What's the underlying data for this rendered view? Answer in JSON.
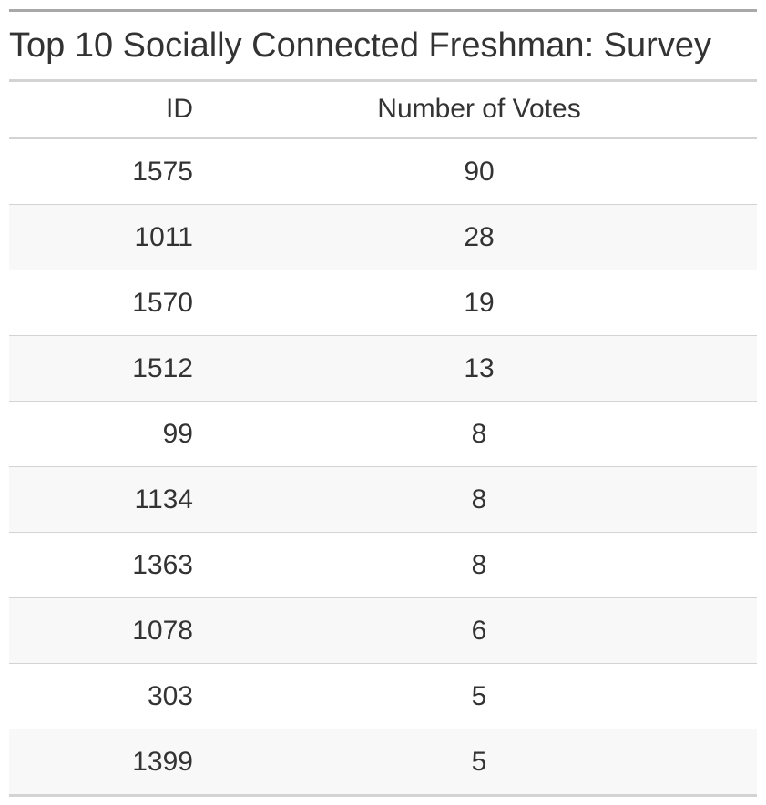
{
  "chart_data": {
    "type": "table",
    "title": "Top 10 Socially Connected Freshman: Survey",
    "columns": [
      "ID",
      "Number of Votes"
    ],
    "rows": [
      {
        "id": "1575",
        "votes": "90"
      },
      {
        "id": "1011",
        "votes": "28"
      },
      {
        "id": "1570",
        "votes": "19"
      },
      {
        "id": "1512",
        "votes": "13"
      },
      {
        "id": "99",
        "votes": "8"
      },
      {
        "id": "1134",
        "votes": "8"
      },
      {
        "id": "1363",
        "votes": "8"
      },
      {
        "id": "1078",
        "votes": "6"
      },
      {
        "id": "303",
        "votes": "5"
      },
      {
        "id": "1399",
        "votes": "5"
      }
    ],
    "striped": true,
    "colors": {
      "text": "#333333",
      "stripe": "#f8f8f8",
      "rule": "#d3d3d3",
      "top_rule": "#a8a8a8"
    }
  }
}
